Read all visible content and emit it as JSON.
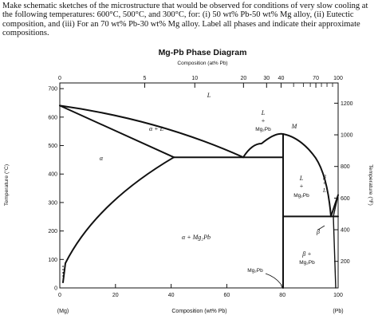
{
  "problem": {
    "text": "Make schematic sketches of the microstructure that would be observed for conditions of very slow cooling at the following temperatures: 600°C, 500°C, and 300°C, for: (i) 50 wt% Pb-50 wt% Mg alloy, (ii) Eutectic composition, and (iii) For an 70 wt% Pb-30 wt% Mg alloy. Label all phases and indicate their approximate compositions."
  },
  "diagram": {
    "title": "Mg-Pb Phase Diagram",
    "top_axis": {
      "label": "Composition (at% Pb)",
      "ticks": [
        {
          "label": "0",
          "x": 0
        },
        {
          "label": "5",
          "x": 30.5
        },
        {
          "label": "10",
          "x": 48.5
        },
        {
          "label": "20",
          "x": 66
        },
        {
          "label": "30",
          "x": 74.3
        },
        {
          "label": "40",
          "x": 79.5
        },
        {
          "label": "70",
          "x": 92
        },
        {
          "label": "100",
          "x": 100
        }
      ],
      "minor_ticks_x": [
        84,
        87.5,
        90,
        94,
        96,
        98
      ]
    },
    "bottom_axis": {
      "label": "Composition (wt% Pb)",
      "range": [
        0,
        100
      ],
      "ticks": [
        "0",
        "20",
        "40",
        "60",
        "80",
        "100"
      ],
      "left_end_label": "(Mg)",
      "right_end_label": "(Pb)"
    },
    "left_axis": {
      "label": "Temperature (°C)",
      "range": [
        0,
        720
      ],
      "ticks": [
        "0",
        "100",
        "200",
        "300",
        "400",
        "500",
        "600",
        "700"
      ]
    },
    "right_axis": {
      "label": "Temperature (°F)",
      "ticks": [
        "200",
        "400",
        "600",
        "800",
        "1000",
        "1200"
      ]
    },
    "regions": {
      "liquid": "L",
      "alpha_liquid": "α + L",
      "alpha": "α",
      "alpha_mg2pb": "α + Mg₂Pb",
      "l_mg2pb_left_l": "L",
      "l_mg2pb_left_plus": "+",
      "l_mg2pb_left_c": "Mg₂Pb",
      "l_mg2pb_right_l": "L",
      "l_mg2pb_right_plus": "+",
      "l_mg2pb_right_c": "Mg₂Pb",
      "beta_l_b": "β",
      "beta_l_plus": "+",
      "beta_l_l": "L",
      "beta": "β",
      "beta_mg2pb_b": "β +",
      "beta_mg2pb_c": "Mg₂Pb",
      "m_label": "M",
      "mg2pb_label": "Mg₂Pb"
    },
    "key_points": {
      "mg_melting_T": 650,
      "eutectic1": {
        "x": 67,
        "T": 466
      },
      "max_solubility_alpha": {
        "x": 41,
        "T": 466
      },
      "congruent_M": {
        "x": 81,
        "T": 550
      },
      "eutectic2": {
        "x": 97,
        "T": 250
      },
      "pb_melting_T": 327
    }
  }
}
